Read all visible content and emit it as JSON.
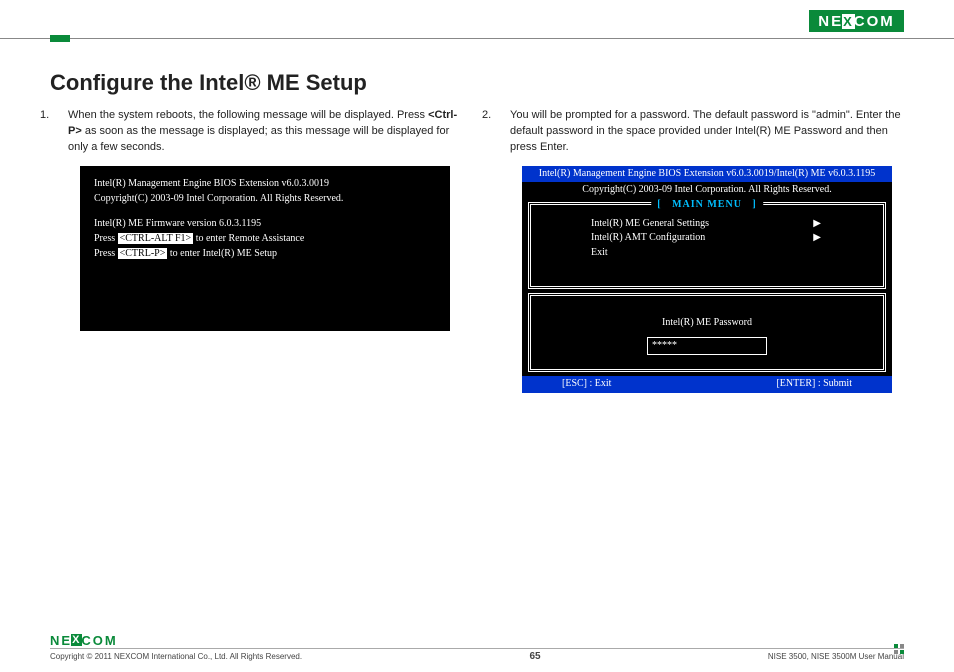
{
  "brand": "NEXCOM",
  "page_title": "Configure the Intel® ME Setup",
  "step1": {
    "num": "1.",
    "text_a": "When the system reboots, the following message will be displayed. Press ",
    "key": "<Ctrl-P>",
    "text_b": " as soon as the message is displayed; as this message will be displayed for only a few seconds."
  },
  "step2": {
    "num": "2.",
    "text": "You will be prompted for a password. The default password is \"admin\". Enter the default password in the space provided under Intel(R) ME Password and then press Enter."
  },
  "bios_left": {
    "line1": "Intel(R) Management Engine BIOS Extension v6.0.3.0019",
    "line2": "Copyright(C) 2003-09 Intel Corporation. All Rights Reserved.",
    "line3": "Intel(R) ME Firmware version 6.0.3.1195",
    "press": "Press ",
    "key1": "<CTRL-ALT F1>",
    "tail1": " to enter Remote Assistance",
    "key2": "<CTRL-P>",
    "tail2": " to enter Intel(R) ME Setup"
  },
  "bios_right": {
    "header": "Intel(R) Management Engine BIOS Extension v6.0.3.0019/Intel(R) ME v6.0.3.1195",
    "copyright": "Copyright(C) 2003-09 Intel Corporation. All Rights Reserved.",
    "main_menu": "MAIN MENU",
    "items": [
      "Intel(R) ME General Settings",
      "Intel(R) AMT Configuration",
      "Exit"
    ],
    "pw_label": "Intel(R) ME Password",
    "pw_value": "*****",
    "footer_left": "[ESC] : Exit",
    "footer_right": "[ENTER] : Submit"
  },
  "footer": {
    "copyright": "Copyright © 2011 NEXCOM International Co., Ltd. All Rights Reserved.",
    "page": "65",
    "manual": "NISE 3500, NISE 3500M User Manual"
  },
  "arrow_glyph": "▶",
  "bracket_l": "[",
  "bracket_r": "]"
}
